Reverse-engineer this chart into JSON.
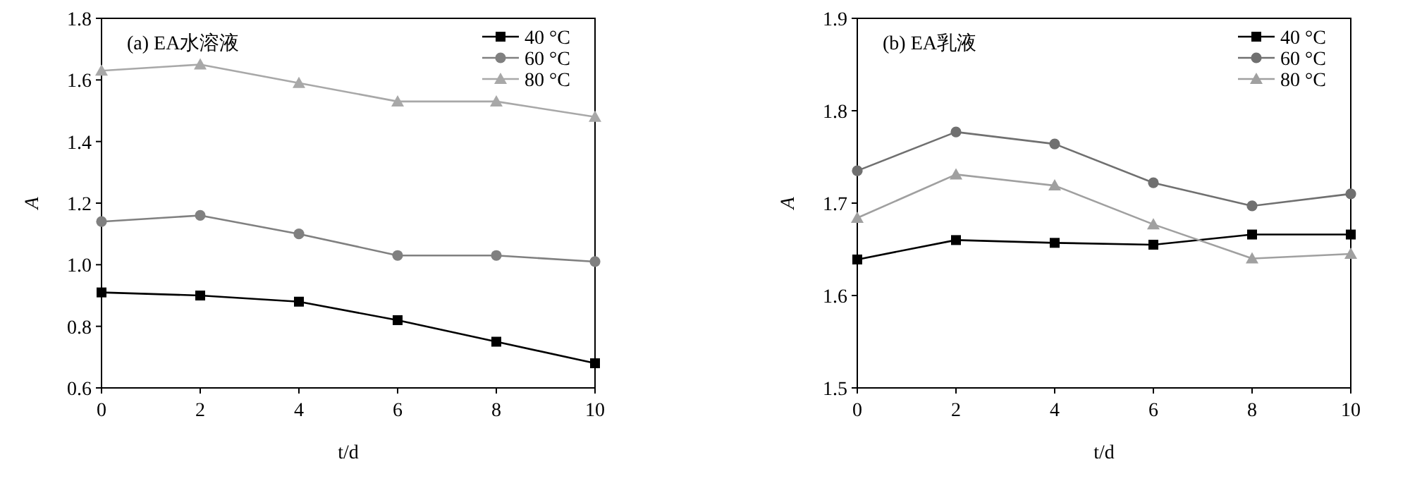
{
  "chart_data": [
    {
      "type": "line",
      "title": "(a)  EA水溶液",
      "xlabel": "t/d",
      "ylabel": "A",
      "x": [
        0,
        2,
        4,
        6,
        8,
        10
      ],
      "xlim": [
        0,
        10
      ],
      "xticks": [
        0,
        2,
        4,
        6,
        8,
        10
      ],
      "ylim": [
        0.6,
        1.8
      ],
      "yticks": [
        {
          "value": 0.6,
          "label": "0.6"
        },
        {
          "value": 0.8,
          "label": "0.8"
        },
        {
          "value": 1.0,
          "label": "1.0"
        },
        {
          "value": 1.2,
          "label": "1.2"
        },
        {
          "value": 1.4,
          "label": "1.4"
        },
        {
          "value": 1.6,
          "label": "1.6"
        },
        {
          "value": 1.8,
          "label": "1.8"
        }
      ],
      "grid": false,
      "legend": "top right",
      "series": [
        {
          "name": "40 °C",
          "color": "#000000",
          "marker": "square",
          "values": [
            0.91,
            0.9,
            0.88,
            0.82,
            0.75,
            0.68
          ]
        },
        {
          "name": "60 °C",
          "color": "#808080",
          "marker": "circle",
          "values": [
            1.14,
            1.16,
            1.1,
            1.03,
            1.03,
            1.01
          ]
        },
        {
          "name": "80 °C",
          "color": "#a8a8a8",
          "marker": "triangle",
          "values": [
            1.63,
            1.65,
            1.59,
            1.53,
            1.53,
            1.48
          ]
        }
      ]
    },
    {
      "type": "line",
      "title": "(b)  EA乳液",
      "xlabel": "t/d",
      "ylabel": "A",
      "x": [
        0,
        2,
        4,
        6,
        8,
        10
      ],
      "xlim": [
        0,
        10
      ],
      "xticks": [
        0,
        2,
        4,
        6,
        8,
        10
      ],
      "ylim": [
        1.5,
        1.9
      ],
      "yticks": [
        1.5,
        1.6,
        1.7,
        1.8,
        1.9
      ],
      "grid": false,
      "legend": "top right",
      "series": [
        {
          "name": "40 °C",
          "color": "#000000",
          "marker": "square",
          "values": [
            1.639,
            1.66,
            1.657,
            1.655,
            1.666,
            1.666
          ]
        },
        {
          "name": "60 °C",
          "color": "#707070",
          "marker": "circle",
          "values": [
            1.735,
            1.777,
            1.764,
            1.722,
            1.697,
            1.71
          ]
        },
        {
          "name": "80 °C",
          "color": "#a0a0a0",
          "marker": "triangle",
          "values": [
            1.684,
            1.731,
            1.719,
            1.677,
            1.64,
            1.645
          ]
        }
      ]
    }
  ]
}
